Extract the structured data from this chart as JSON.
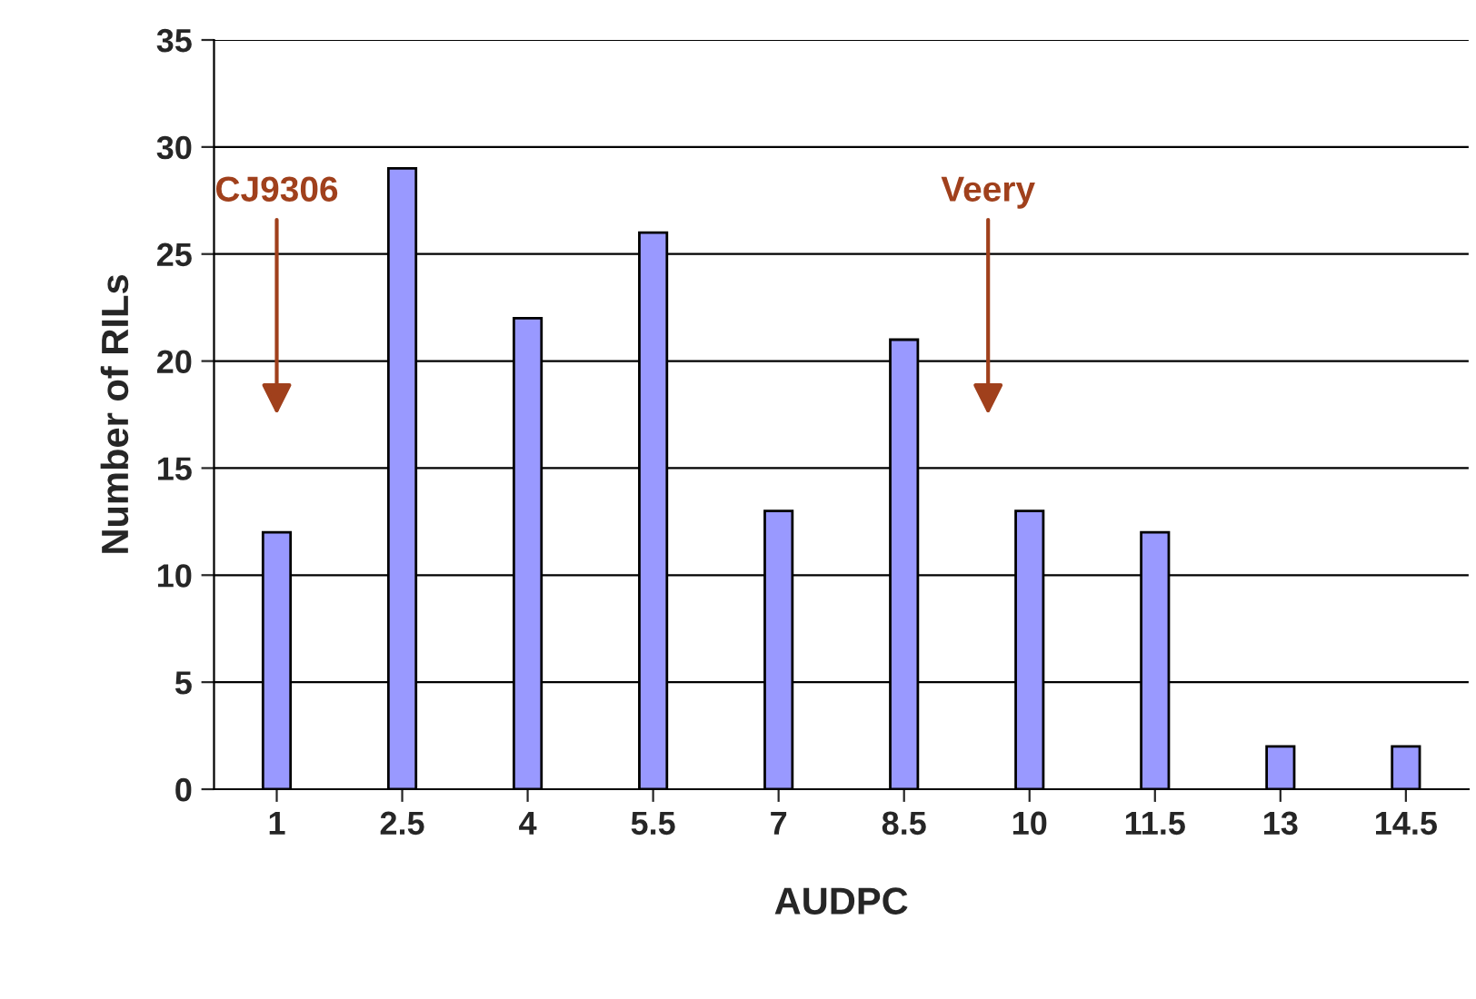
{
  "chart_data": {
    "type": "bar",
    "xlabel": "AUDPC",
    "ylabel": "Number of RILs",
    "x": [
      1,
      2.5,
      4,
      5.5,
      7,
      8.5,
      10,
      11.5,
      13,
      14.5
    ],
    "values": [
      12,
      29,
      22,
      26,
      13,
      21,
      13,
      12,
      2,
      2
    ],
    "color": "#9999ff",
    "xlim": [
      0.25,
      15.25
    ],
    "xticks": [
      1,
      2.5,
      4,
      5.5,
      7,
      8.5,
      10,
      11.5,
      13,
      14.5
    ],
    "ylim": [
      0,
      35
    ],
    "yticks": [
      0,
      5,
      10,
      15,
      20,
      25,
      30,
      35
    ],
    "grid": "y",
    "annotations": [
      "CJ9306",
      "Veery"
    ]
  }
}
